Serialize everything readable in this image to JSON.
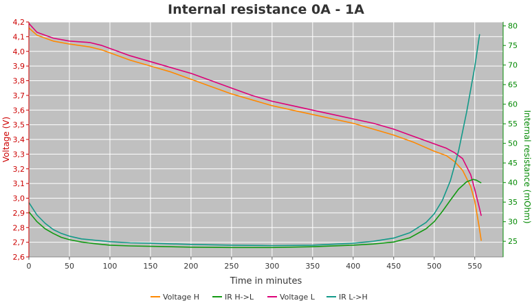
{
  "chart_data": {
    "type": "line",
    "title": "Internal resistance  0A - 1A",
    "xlabel": "Time in minutes",
    "ylabel_left": "Voltage (V)",
    "ylabel_right": "Internal resistance (mOhm)",
    "xlim": [
      0,
      585
    ],
    "ylim_left": [
      2.6,
      4.2
    ],
    "ylim_right": [
      21,
      81
    ],
    "x_ticks": [
      "0",
      "50",
      "100",
      "150",
      "200",
      "250",
      "300",
      "350",
      "400",
      "450",
      "500",
      "550"
    ],
    "x_tick_values": [
      0,
      50,
      100,
      150,
      200,
      250,
      300,
      350,
      400,
      450,
      500,
      550
    ],
    "y_left_ticks": [
      "2,6",
      "2,7",
      "2,8",
      "2,9",
      "3,0",
      "3,1",
      "3,2",
      "3,3",
      "3,4",
      "3,5",
      "3,6",
      "3,7",
      "3,8",
      "3,9",
      "4,0",
      "4,1",
      "4,2"
    ],
    "y_left_tick_values": [
      2.6,
      2.7,
      2.8,
      2.9,
      3.0,
      3.1,
      3.2,
      3.3,
      3.4,
      3.5,
      3.6,
      3.7,
      3.8,
      3.9,
      4.0,
      4.1,
      4.2
    ],
    "y_right_ticks": [
      "25",
      "30",
      "35",
      "40",
      "45",
      "50",
      "55",
      "60",
      "65",
      "70",
      "75",
      "80"
    ],
    "y_right_tick_values": [
      25,
      30,
      35,
      40,
      45,
      50,
      55,
      60,
      65,
      70,
      75,
      80
    ],
    "grid": true,
    "legend_position": "bottom",
    "colors": {
      "background": "#c0c0c0",
      "grid": "#ffffff",
      "left_axis": "#cc0000",
      "right_axis": "#008800"
    },
    "series": [
      {
        "name": "Voltage H",
        "axis": "left",
        "color": "#ff8800",
        "x": [
          0,
          10,
          30,
          50,
          75,
          90,
          100,
          125,
          150,
          175,
          200,
          225,
          250,
          275,
          300,
          325,
          350,
          375,
          400,
          425,
          450,
          475,
          500,
          515,
          525,
          535,
          545,
          550,
          555,
          558
        ],
        "y": [
          4.16,
          4.11,
          4.07,
          4.05,
          4.03,
          4.01,
          3.99,
          3.94,
          3.9,
          3.86,
          3.81,
          3.76,
          3.71,
          3.67,
          3.63,
          3.6,
          3.57,
          3.54,
          3.51,
          3.47,
          3.43,
          3.38,
          3.32,
          3.29,
          3.25,
          3.19,
          3.08,
          2.98,
          2.82,
          2.71
        ]
      },
      {
        "name": "IR H->L",
        "axis": "right",
        "color": "#119911",
        "x": [
          0,
          10,
          20,
          30,
          40,
          50,
          65,
          80,
          100,
          125,
          150,
          200,
          250,
          300,
          350,
          400,
          425,
          450,
          470,
          490,
          500,
          510,
          520,
          530,
          540,
          548,
          552,
          558
        ],
        "y": [
          32.5,
          30.0,
          28.2,
          27.0,
          26.0,
          25.4,
          24.8,
          24.4,
          24.0,
          23.8,
          23.7,
          23.5,
          23.4,
          23.4,
          23.6,
          24.0,
          24.3,
          24.8,
          25.9,
          28.2,
          30.0,
          32.6,
          35.5,
          38.3,
          40.2,
          40.8,
          40.6,
          39.9
        ]
      },
      {
        "name": "Voltage L",
        "axis": "left",
        "color": "#dd0077",
        "x": [
          0,
          10,
          30,
          50,
          75,
          90,
          100,
          125,
          150,
          175,
          200,
          225,
          250,
          275,
          300,
          325,
          350,
          375,
          400,
          425,
          450,
          475,
          500,
          515,
          525,
          535,
          545,
          550,
          555,
          558
        ],
        "y": [
          4.19,
          4.13,
          4.09,
          4.07,
          4.06,
          4.04,
          4.02,
          3.97,
          3.93,
          3.89,
          3.85,
          3.8,
          3.75,
          3.7,
          3.66,
          3.63,
          3.6,
          3.57,
          3.54,
          3.51,
          3.47,
          3.42,
          3.37,
          3.34,
          3.31,
          3.27,
          3.16,
          3.06,
          2.95,
          2.88
        ]
      },
      {
        "name": "IR L->H",
        "axis": "right",
        "color": "#119988",
        "x": [
          0,
          10,
          20,
          30,
          40,
          50,
          65,
          80,
          100,
          125,
          150,
          200,
          250,
          300,
          350,
          400,
          425,
          450,
          470,
          490,
          500,
          510,
          520,
          530,
          540,
          550,
          556
        ],
        "y": [
          34.9,
          31.7,
          29.6,
          28.0,
          27.0,
          26.3,
          25.6,
          25.3,
          24.9,
          24.6,
          24.5,
          24.2,
          24.0,
          23.9,
          24.0,
          24.5,
          25.0,
          25.8,
          27.2,
          29.8,
          32.0,
          35.4,
          40.5,
          48.0,
          58.0,
          69.5,
          77.9
        ]
      }
    ]
  }
}
